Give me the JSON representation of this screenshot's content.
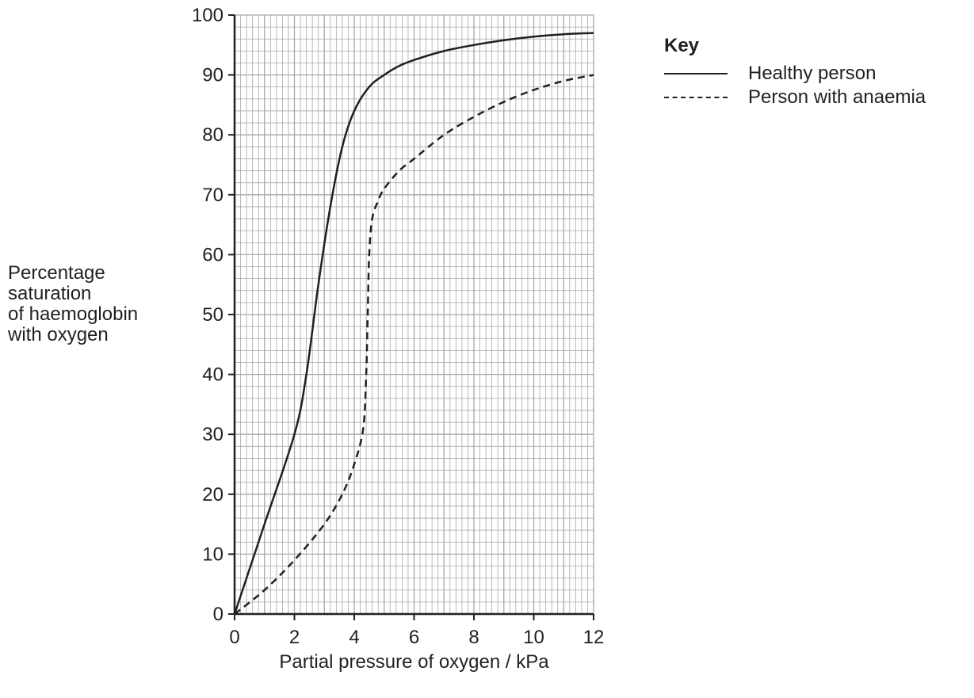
{
  "chart_data": {
    "type": "line",
    "xlabel": "Partial pressure of oxygen / kPa",
    "ylabel_lines": [
      "Percentage",
      "saturation",
      "of haemoglobin",
      "with oxygen"
    ],
    "xlim": [
      0,
      12
    ],
    "ylim": [
      0,
      100
    ],
    "x_ticks": [
      "0",
      "2",
      "4",
      "6",
      "8",
      "10",
      "12"
    ],
    "y_ticks": [
      "0",
      "10",
      "20",
      "30",
      "40",
      "50",
      "60",
      "70",
      "80",
      "90",
      "100"
    ],
    "grid": true,
    "legend": {
      "title": "Key",
      "placement": "top-right"
    },
    "series": [
      {
        "name": "Healthy person",
        "style": "solid",
        "x": [
          0,
          1,
          2,
          2.4,
          2.8,
          3.2,
          3.6,
          4,
          4.5,
          5,
          5.5,
          6,
          7,
          8,
          9,
          10,
          11,
          12
        ],
        "y": [
          0,
          15,
          30,
          40,
          55,
          68,
          78,
          84,
          88,
          90,
          91.5,
          92.5,
          94,
          95,
          95.8,
          96.4,
          96.8,
          97
        ]
      },
      {
        "name": "Person with anaemia",
        "style": "dashed",
        "x": [
          0,
          1,
          2,
          3,
          3.6,
          4,
          4.3,
          4.4,
          4.45,
          4.5,
          4.6,
          4.8,
          5,
          5.5,
          6,
          7,
          8,
          9,
          10,
          11,
          12
        ],
        "y": [
          0,
          4,
          9,
          15,
          20,
          25,
          31,
          40,
          50,
          60,
          66,
          69,
          71,
          74,
          76,
          80,
          83,
          85.5,
          87.5,
          89,
          90
        ]
      }
    ]
  },
  "colors": {
    "grid_minor": "#a8a8a8",
    "axis": "#231f20",
    "line": "#231f20"
  }
}
